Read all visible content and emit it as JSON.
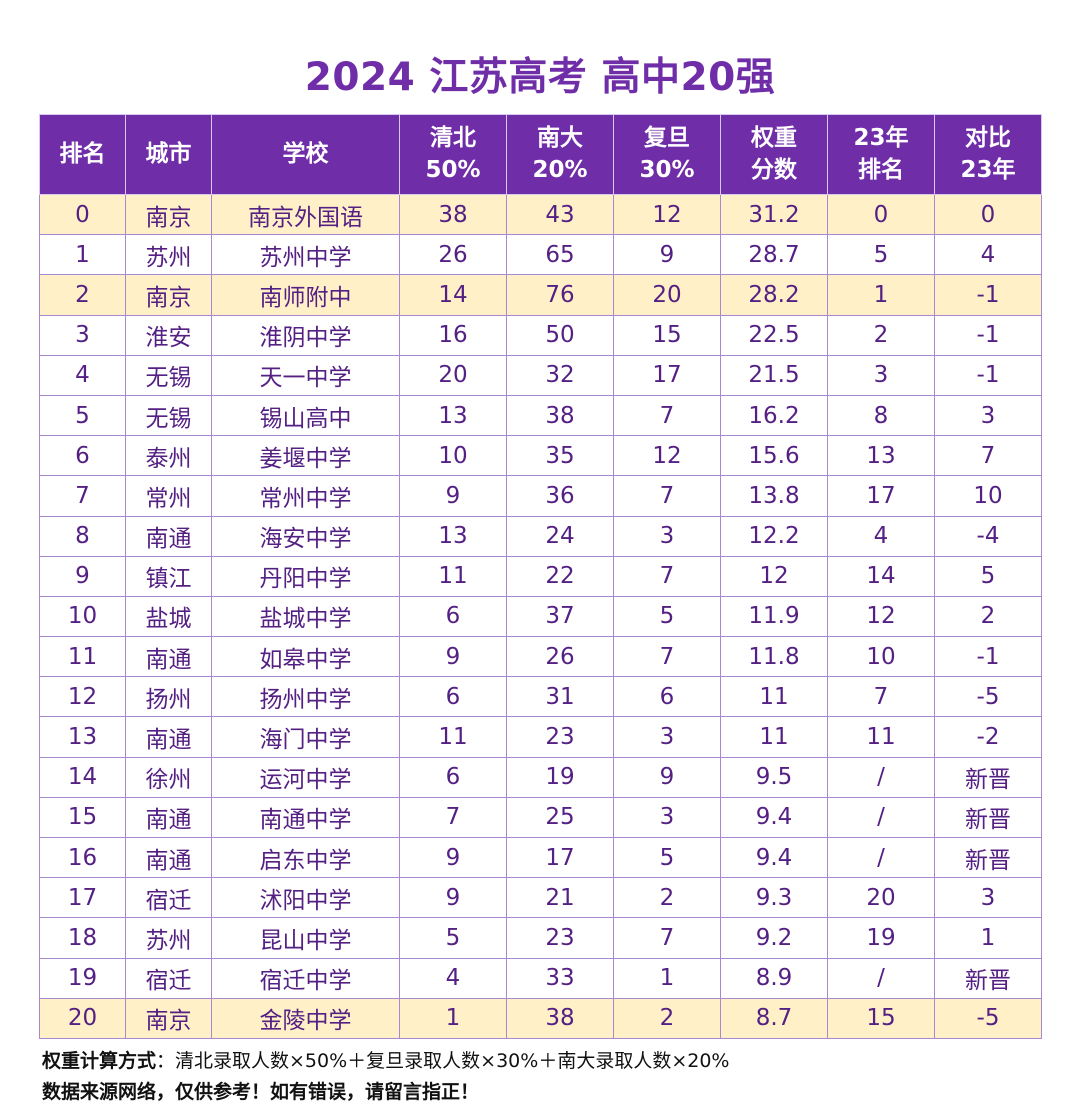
{
  "page": {
    "title": "2024 江苏高考 高中20强"
  },
  "columns": [
    {
      "line1": "排名",
      "line2": ""
    },
    {
      "line1": "城市",
      "line2": ""
    },
    {
      "line1": "学校",
      "line2": ""
    },
    {
      "line1": "清北",
      "line2": "50%"
    },
    {
      "line1": "南大",
      "line2": "20%"
    },
    {
      "line1": "复旦",
      "line2": "30%"
    },
    {
      "line1": "权重",
      "line2": "分数"
    },
    {
      "line1": "23年",
      "line2": "排名"
    },
    {
      "line1": "对比",
      "line2": "23年"
    }
  ],
  "rows": [
    {
      "rank": "0",
      "city": "南京",
      "school": "南京外国语",
      "qingbei": "38",
      "nanda": "43",
      "fudan": "12",
      "score": "31.2",
      "rank23": "0",
      "diff": "0",
      "highlight": true
    },
    {
      "rank": "1",
      "city": "苏州",
      "school": "苏州中学",
      "qingbei": "26",
      "nanda": "65",
      "fudan": "9",
      "score": "28.7",
      "rank23": "5",
      "diff": "4",
      "highlight": false
    },
    {
      "rank": "2",
      "city": "南京",
      "school": "南师附中",
      "qingbei": "14",
      "nanda": "76",
      "fudan": "20",
      "score": "28.2",
      "rank23": "1",
      "diff": "-1",
      "highlight": true
    },
    {
      "rank": "3",
      "city": "淮安",
      "school": "淮阴中学",
      "qingbei": "16",
      "nanda": "50",
      "fudan": "15",
      "score": "22.5",
      "rank23": "2",
      "diff": "-1",
      "highlight": false
    },
    {
      "rank": "4",
      "city": "无锡",
      "school": "天一中学",
      "qingbei": "20",
      "nanda": "32",
      "fudan": "17",
      "score": "21.5",
      "rank23": "3",
      "diff": "-1",
      "highlight": false
    },
    {
      "rank": "5",
      "city": "无锡",
      "school": "锡山高中",
      "qingbei": "13",
      "nanda": "38",
      "fudan": "7",
      "score": "16.2",
      "rank23": "8",
      "diff": "3",
      "highlight": false
    },
    {
      "rank": "6",
      "city": "泰州",
      "school": "姜堰中学",
      "qingbei": "10",
      "nanda": "35",
      "fudan": "12",
      "score": "15.6",
      "rank23": "13",
      "diff": "7",
      "highlight": false
    },
    {
      "rank": "7",
      "city": "常州",
      "school": "常州中学",
      "qingbei": "9",
      "nanda": "36",
      "fudan": "7",
      "score": "13.8",
      "rank23": "17",
      "diff": "10",
      "highlight": false
    },
    {
      "rank": "8",
      "city": "南通",
      "school": "海安中学",
      "qingbei": "13",
      "nanda": "24",
      "fudan": "3",
      "score": "12.2",
      "rank23": "4",
      "diff": "-4",
      "highlight": false
    },
    {
      "rank": "9",
      "city": "镇江",
      "school": "丹阳中学",
      "qingbei": "11",
      "nanda": "22",
      "fudan": "7",
      "score": "12",
      "rank23": "14",
      "diff": "5",
      "highlight": false
    },
    {
      "rank": "10",
      "city": "盐城",
      "school": "盐城中学",
      "qingbei": "6",
      "nanda": "37",
      "fudan": "5",
      "score": "11.9",
      "rank23": "12",
      "diff": "2",
      "highlight": false
    },
    {
      "rank": "11",
      "city": "南通",
      "school": "如皋中学",
      "qingbei": "9",
      "nanda": "26",
      "fudan": "7",
      "score": "11.8",
      "rank23": "10",
      "diff": "-1",
      "highlight": false
    },
    {
      "rank": "12",
      "city": "扬州",
      "school": "扬州中学",
      "qingbei": "6",
      "nanda": "31",
      "fudan": "6",
      "score": "11",
      "rank23": "7",
      "diff": "-5",
      "highlight": false
    },
    {
      "rank": "13",
      "city": "南通",
      "school": "海门中学",
      "qingbei": "11",
      "nanda": "23",
      "fudan": "3",
      "score": "11",
      "rank23": "11",
      "diff": "-2",
      "highlight": false
    },
    {
      "rank": "14",
      "city": "徐州",
      "school": "运河中学",
      "qingbei": "6",
      "nanda": "19",
      "fudan": "9",
      "score": "9.5",
      "rank23": "/",
      "diff": "新晋",
      "highlight": false
    },
    {
      "rank": "15",
      "city": "南通",
      "school": "南通中学",
      "qingbei": "7",
      "nanda": "25",
      "fudan": "3",
      "score": "9.4",
      "rank23": "/",
      "diff": "新晋",
      "highlight": false
    },
    {
      "rank": "16",
      "city": "南通",
      "school": "启东中学",
      "qingbei": "9",
      "nanda": "17",
      "fudan": "5",
      "score": "9.4",
      "rank23": "/",
      "diff": "新晋",
      "highlight": false
    },
    {
      "rank": "17",
      "city": "宿迁",
      "school": "沭阳中学",
      "qingbei": "9",
      "nanda": "21",
      "fudan": "2",
      "score": "9.3",
      "rank23": "20",
      "diff": "3",
      "highlight": false
    },
    {
      "rank": "18",
      "city": "苏州",
      "school": "昆山中学",
      "qingbei": "5",
      "nanda": "23",
      "fudan": "7",
      "score": "9.2",
      "rank23": "19",
      "diff": "1",
      "highlight": false
    },
    {
      "rank": "19",
      "city": "宿迁",
      "school": "宿迁中学",
      "qingbei": "4",
      "nanda": "33",
      "fudan": "1",
      "score": "8.9",
      "rank23": "/",
      "diff": "新晋",
      "highlight": false
    },
    {
      "rank": "20",
      "city": "南京",
      "school": "金陵中学",
      "qingbei": "1",
      "nanda": "38",
      "fudan": "2",
      "score": "8.7",
      "rank23": "15",
      "diff": "-5",
      "highlight": true
    }
  ],
  "footer": {
    "formula_label": "权重计算方式",
    "formula_text": "：清北录取人数×50%＋复旦录取人数×30%＋南大录取人数×20%",
    "disclaimer": "数据来源网络，仅供参考！如有错误，请留言指正！"
  }
}
